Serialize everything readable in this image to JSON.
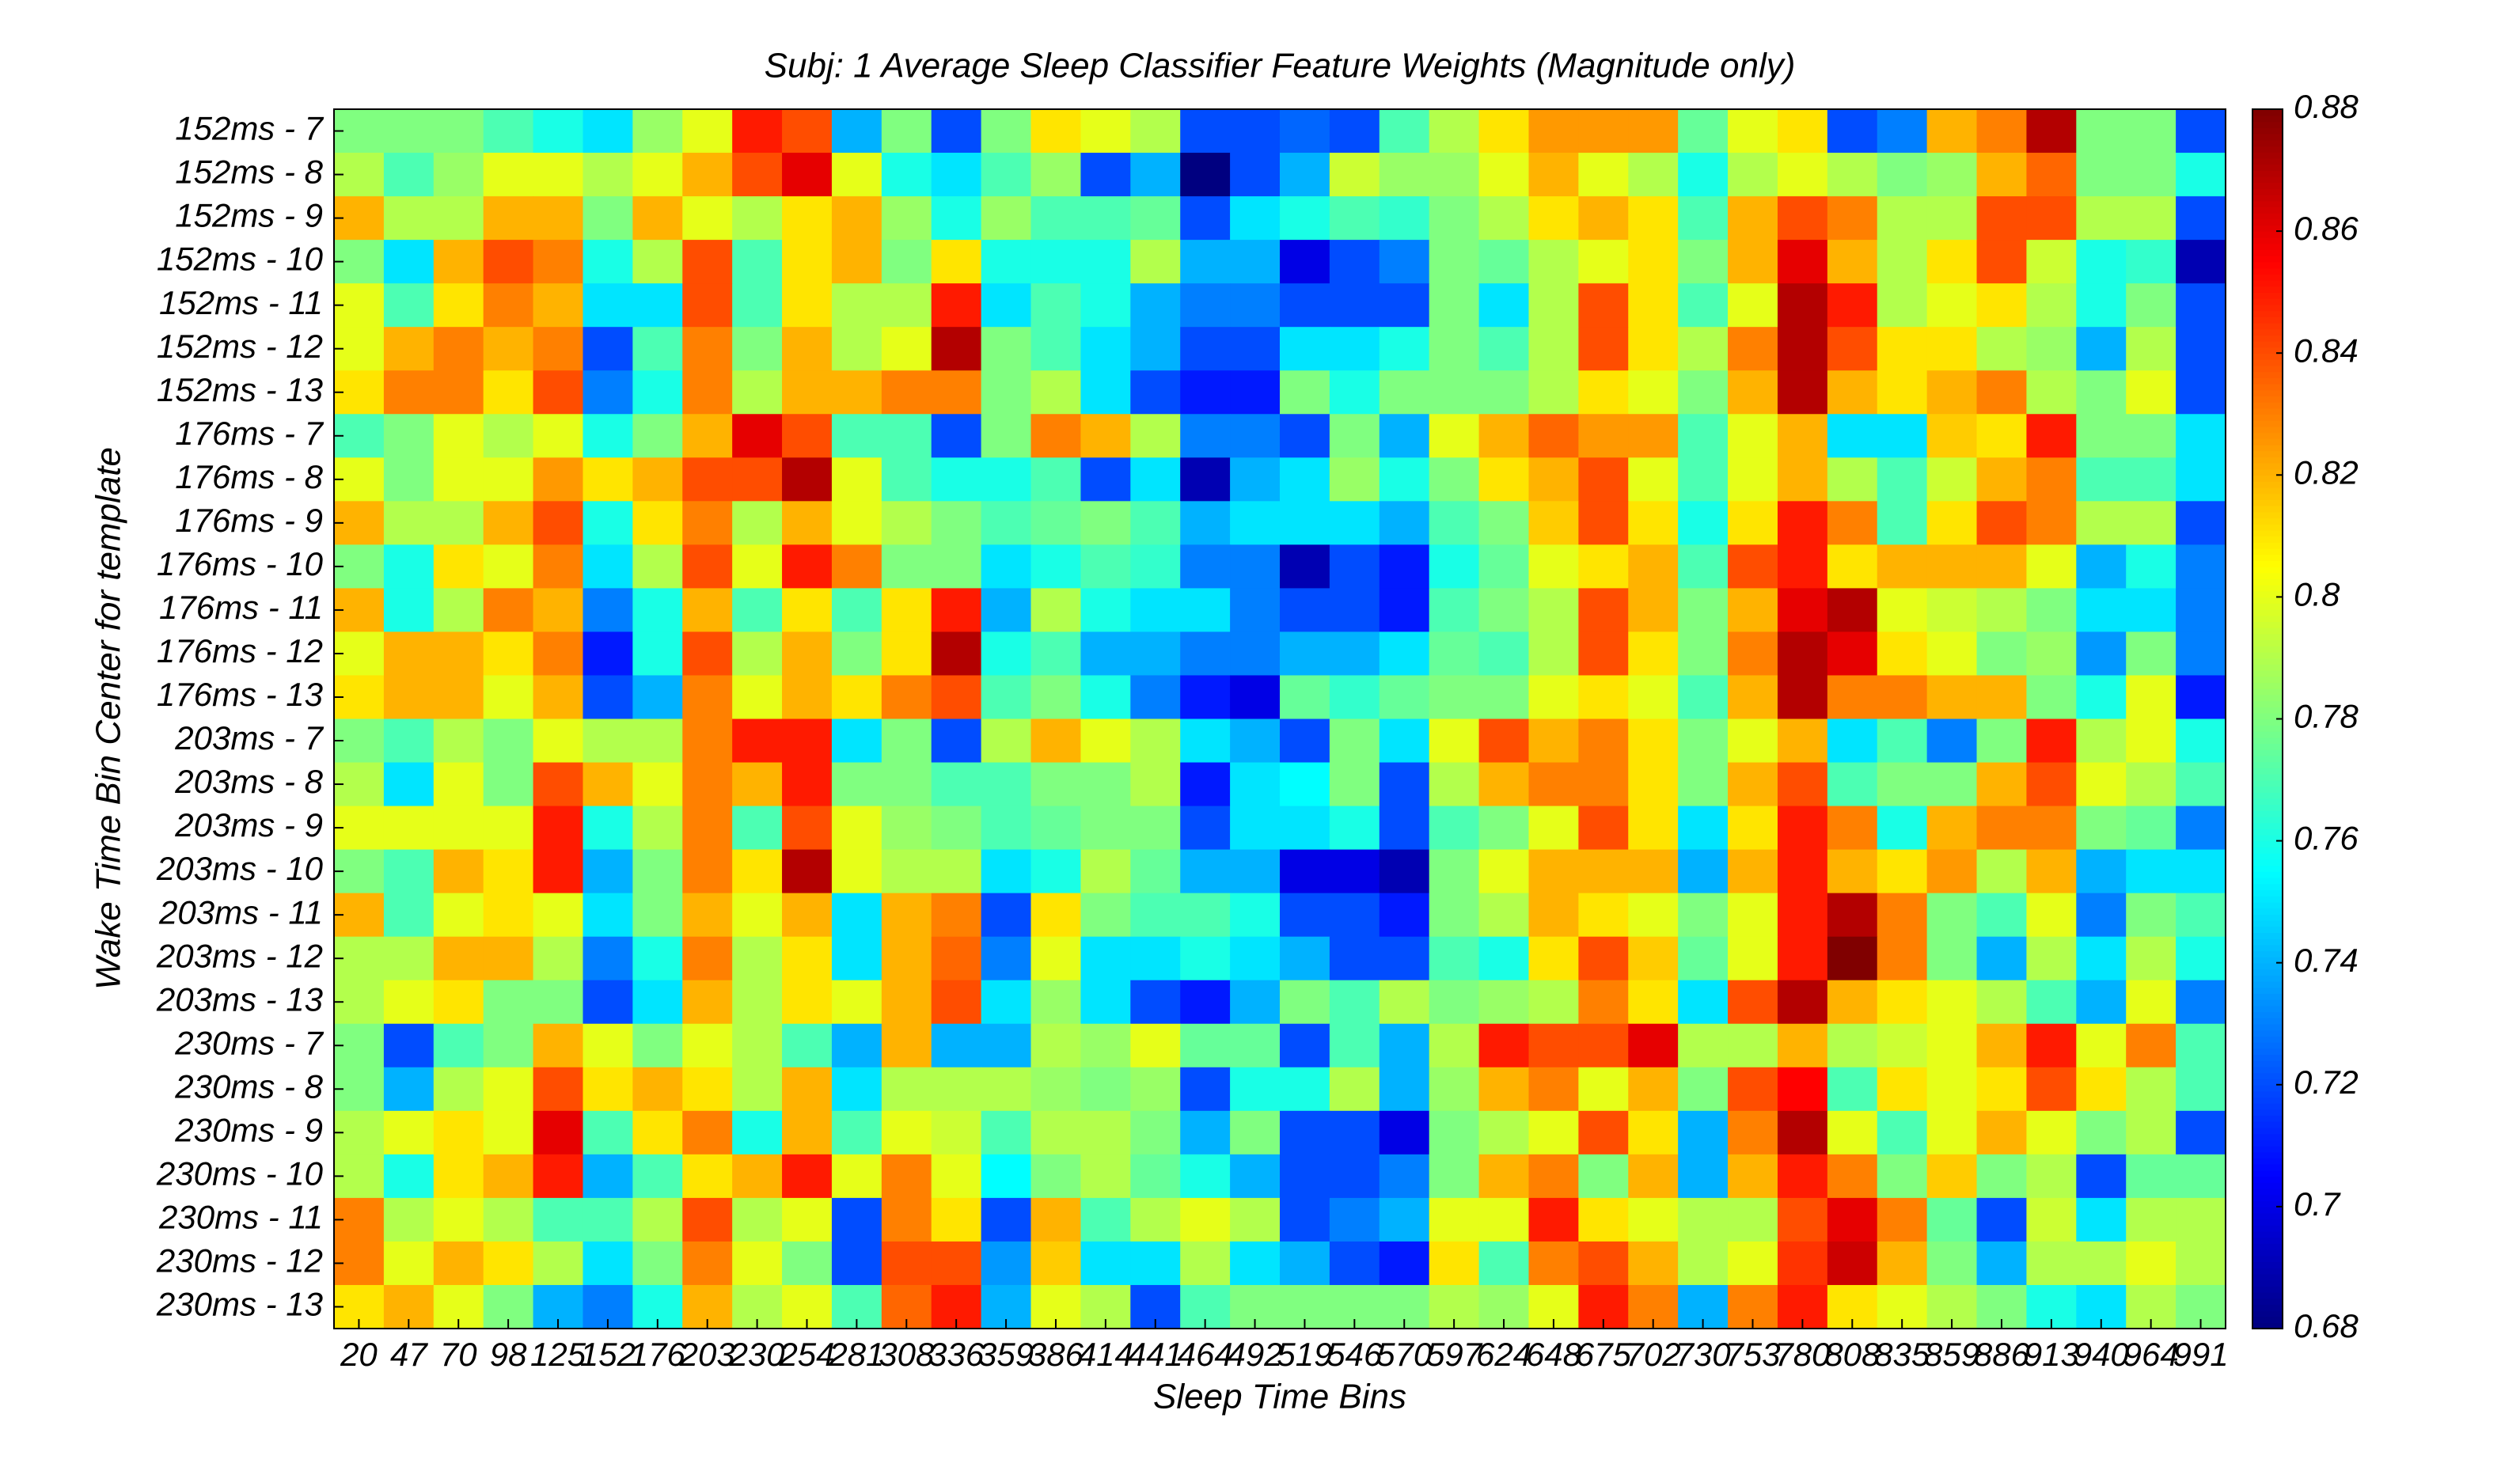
{
  "chart_data": {
    "type": "heatmap",
    "title": "Subj: 1 Average Sleep Classifier Feature Weights (Magnitude only)",
    "x_label": "Sleep Time Bins",
    "y_label": "Wake Time Bin Center for template",
    "colormap": "jet",
    "x": [
      "20",
      "47",
      "70",
      "98",
      "125",
      "152",
      "176",
      "203",
      "230",
      "254",
      "281",
      "308",
      "336",
      "359",
      "386",
      "414",
      "441",
      "464",
      "492",
      "519",
      "546",
      "570",
      "597",
      "624",
      "648",
      "675",
      "702",
      "730",
      "753",
      "780",
      "808",
      "835",
      "859",
      "886",
      "913",
      "940",
      "964",
      "991"
    ],
    "y": [
      "152ms - 7",
      "152ms - 8",
      "152ms - 9",
      "152ms - 10",
      "152ms - 11",
      "152ms - 12",
      "152ms - 13",
      "176ms - 7",
      "176ms - 8",
      "176ms - 9",
      "176ms - 10",
      "176ms - 11",
      "176ms - 12",
      "176ms - 13",
      "203ms - 7",
      "203ms - 8",
      "203ms - 9",
      "203ms - 10",
      "203ms - 11",
      "203ms - 12",
      "203ms - 13",
      "230ms - 7",
      "230ms - 8",
      "230ms - 9",
      "230ms - 10",
      "230ms - 11",
      "230ms - 12",
      "230ms - 13"
    ],
    "values": [
      [
        0.78,
        0.78,
        0.78,
        0.77,
        0.76,
        0.75,
        0.785,
        0.8,
        0.85,
        0.84,
        0.74,
        0.78,
        0.72,
        0.78,
        0.81,
        0.8,
        0.79,
        0.72,
        0.72,
        0.725,
        0.72,
        0.77,
        0.79,
        0.81,
        0.825,
        0.825,
        0.825,
        0.775,
        0.8,
        0.81,
        0.72,
        0.73,
        0.82,
        0.83,
        0.87,
        0.78,
        0.78,
        0.72
      ],
      [
        0.79,
        0.77,
        0.785,
        0.8,
        0.8,
        0.79,
        0.8,
        0.82,
        0.84,
        0.86,
        0.8,
        0.76,
        0.75,
        0.77,
        0.785,
        0.72,
        0.74,
        0.68,
        0.72,
        0.74,
        0.795,
        0.785,
        0.785,
        0.8,
        0.82,
        0.8,
        0.79,
        0.76,
        0.79,
        0.8,
        0.79,
        0.78,
        0.785,
        0.82,
        0.835,
        0.78,
        0.78,
        0.76
      ],
      [
        0.82,
        0.79,
        0.79,
        0.82,
        0.82,
        0.78,
        0.82,
        0.8,
        0.79,
        0.81,
        0.82,
        0.785,
        0.76,
        0.785,
        0.77,
        0.77,
        0.775,
        0.72,
        0.75,
        0.76,
        0.77,
        0.765,
        0.78,
        0.79,
        0.81,
        0.82,
        0.81,
        0.77,
        0.82,
        0.84,
        0.83,
        0.79,
        0.79,
        0.84,
        0.84,
        0.79,
        0.79,
        0.72
      ],
      [
        0.78,
        0.75,
        0.82,
        0.84,
        0.83,
        0.76,
        0.79,
        0.84,
        0.77,
        0.81,
        0.82,
        0.78,
        0.81,
        0.76,
        0.76,
        0.76,
        0.79,
        0.74,
        0.74,
        0.7,
        0.72,
        0.73,
        0.78,
        0.775,
        0.79,
        0.8,
        0.81,
        0.78,
        0.82,
        0.86,
        0.82,
        0.79,
        0.81,
        0.84,
        0.795,
        0.76,
        0.765,
        0.69
      ],
      [
        0.8,
        0.77,
        0.81,
        0.83,
        0.82,
        0.75,
        0.75,
        0.84,
        0.77,
        0.81,
        0.79,
        0.79,
        0.85,
        0.75,
        0.77,
        0.76,
        0.74,
        0.73,
        0.73,
        0.72,
        0.72,
        0.72,
        0.78,
        0.75,
        0.79,
        0.84,
        0.81,
        0.77,
        0.8,
        0.87,
        0.85,
        0.79,
        0.8,
        0.81,
        0.79,
        0.76,
        0.78,
        0.72
      ],
      [
        0.8,
        0.82,
        0.83,
        0.82,
        0.83,
        0.72,
        0.77,
        0.83,
        0.78,
        0.82,
        0.79,
        0.8,
        0.87,
        0.78,
        0.77,
        0.75,
        0.74,
        0.72,
        0.72,
        0.75,
        0.75,
        0.76,
        0.78,
        0.77,
        0.79,
        0.84,
        0.81,
        0.79,
        0.83,
        0.87,
        0.84,
        0.81,
        0.81,
        0.79,
        0.785,
        0.74,
        0.79,
        0.72
      ],
      [
        0.81,
        0.83,
        0.83,
        0.81,
        0.84,
        0.73,
        0.76,
        0.83,
        0.79,
        0.82,
        0.82,
        0.83,
        0.83,
        0.78,
        0.79,
        0.75,
        0.72,
        0.71,
        0.71,
        0.78,
        0.76,
        0.78,
        0.78,
        0.78,
        0.79,
        0.81,
        0.8,
        0.78,
        0.82,
        0.87,
        0.82,
        0.81,
        0.82,
        0.83,
        0.79,
        0.78,
        0.8,
        0.72
      ],
      [
        0.77,
        0.78,
        0.8,
        0.79,
        0.8,
        0.76,
        0.78,
        0.82,
        0.86,
        0.84,
        0.77,
        0.77,
        0.72,
        0.78,
        0.83,
        0.82,
        0.79,
        0.73,
        0.73,
        0.72,
        0.78,
        0.74,
        0.8,
        0.82,
        0.835,
        0.825,
        0.825,
        0.77,
        0.8,
        0.82,
        0.75,
        0.75,
        0.815,
        0.81,
        0.85,
        0.78,
        0.78,
        0.75
      ],
      [
        0.8,
        0.78,
        0.8,
        0.8,
        0.825,
        0.81,
        0.82,
        0.84,
        0.84,
        0.87,
        0.8,
        0.77,
        0.76,
        0.76,
        0.77,
        0.72,
        0.75,
        0.69,
        0.74,
        0.75,
        0.785,
        0.76,
        0.78,
        0.81,
        0.82,
        0.84,
        0.8,
        0.77,
        0.8,
        0.82,
        0.79,
        0.77,
        0.795,
        0.82,
        0.83,
        0.77,
        0.77,
        0.75
      ],
      [
        0.82,
        0.79,
        0.79,
        0.82,
        0.84,
        0.76,
        0.81,
        0.83,
        0.79,
        0.82,
        0.8,
        0.79,
        0.78,
        0.77,
        0.775,
        0.78,
        0.77,
        0.74,
        0.75,
        0.75,
        0.75,
        0.74,
        0.77,
        0.78,
        0.815,
        0.84,
        0.81,
        0.76,
        0.81,
        0.85,
        0.83,
        0.77,
        0.81,
        0.84,
        0.83,
        0.79,
        0.79,
        0.72
      ],
      [
        0.78,
        0.76,
        0.81,
        0.8,
        0.83,
        0.75,
        0.79,
        0.84,
        0.8,
        0.85,
        0.83,
        0.78,
        0.78,
        0.75,
        0.76,
        0.77,
        0.765,
        0.73,
        0.73,
        0.69,
        0.72,
        0.71,
        0.76,
        0.775,
        0.8,
        0.81,
        0.82,
        0.77,
        0.84,
        0.85,
        0.81,
        0.82,
        0.82,
        0.82,
        0.8,
        0.74,
        0.76,
        0.73
      ],
      [
        0.82,
        0.76,
        0.79,
        0.83,
        0.82,
        0.73,
        0.76,
        0.82,
        0.77,
        0.81,
        0.77,
        0.81,
        0.85,
        0.74,
        0.79,
        0.76,
        0.75,
        0.75,
        0.73,
        0.72,
        0.72,
        0.71,
        0.77,
        0.78,
        0.79,
        0.84,
        0.82,
        0.78,
        0.82,
        0.86,
        0.87,
        0.8,
        0.795,
        0.79,
        0.78,
        0.75,
        0.75,
        0.73
      ],
      [
        0.8,
        0.82,
        0.82,
        0.81,
        0.83,
        0.71,
        0.76,
        0.84,
        0.79,
        0.82,
        0.78,
        0.81,
        0.87,
        0.76,
        0.77,
        0.74,
        0.74,
        0.73,
        0.73,
        0.74,
        0.74,
        0.75,
        0.775,
        0.77,
        0.79,
        0.84,
        0.81,
        0.78,
        0.83,
        0.87,
        0.86,
        0.81,
        0.8,
        0.78,
        0.785,
        0.735,
        0.78,
        0.73
      ],
      [
        0.81,
        0.82,
        0.82,
        0.8,
        0.82,
        0.72,
        0.74,
        0.83,
        0.8,
        0.82,
        0.81,
        0.83,
        0.84,
        0.77,
        0.78,
        0.76,
        0.73,
        0.71,
        0.7,
        0.775,
        0.765,
        0.775,
        0.78,
        0.78,
        0.8,
        0.81,
        0.8,
        0.77,
        0.82,
        0.87,
        0.83,
        0.83,
        0.82,
        0.82,
        0.78,
        0.76,
        0.8,
        0.71
      ],
      [
        0.78,
        0.77,
        0.79,
        0.78,
        0.8,
        0.79,
        0.79,
        0.83,
        0.85,
        0.85,
        0.75,
        0.78,
        0.72,
        0.79,
        0.82,
        0.8,
        0.79,
        0.75,
        0.74,
        0.72,
        0.78,
        0.75,
        0.8,
        0.84,
        0.82,
        0.83,
        0.81,
        0.78,
        0.8,
        0.82,
        0.75,
        0.77,
        0.73,
        0.78,
        0.85,
        0.79,
        0.8,
        0.76
      ],
      [
        0.79,
        0.75,
        0.8,
        0.78,
        0.84,
        0.82,
        0.8,
        0.83,
        0.82,
        0.85,
        0.78,
        0.78,
        0.77,
        0.77,
        0.78,
        0.78,
        0.79,
        0.71,
        0.75,
        0.755,
        0.78,
        0.72,
        0.79,
        0.82,
        0.83,
        0.83,
        0.81,
        0.78,
        0.82,
        0.84,
        0.77,
        0.78,
        0.78,
        0.82,
        0.84,
        0.8,
        0.79,
        0.77
      ],
      [
        0.8,
        0.8,
        0.8,
        0.8,
        0.85,
        0.76,
        0.79,
        0.83,
        0.77,
        0.84,
        0.8,
        0.785,
        0.78,
        0.77,
        0.775,
        0.78,
        0.78,
        0.72,
        0.75,
        0.75,
        0.76,
        0.72,
        0.77,
        0.78,
        0.8,
        0.84,
        0.81,
        0.75,
        0.81,
        0.85,
        0.83,
        0.76,
        0.82,
        0.83,
        0.83,
        0.78,
        0.775,
        0.73
      ],
      [
        0.78,
        0.77,
        0.82,
        0.81,
        0.85,
        0.74,
        0.78,
        0.83,
        0.81,
        0.87,
        0.8,
        0.79,
        0.79,
        0.75,
        0.76,
        0.79,
        0.775,
        0.74,
        0.74,
        0.7,
        0.7,
        0.69,
        0.78,
        0.8,
        0.82,
        0.82,
        0.82,
        0.74,
        0.82,
        0.85,
        0.82,
        0.81,
        0.825,
        0.79,
        0.82,
        0.74,
        0.75,
        0.75
      ],
      [
        0.82,
        0.77,
        0.8,
        0.81,
        0.8,
        0.75,
        0.78,
        0.82,
        0.8,
        0.82,
        0.75,
        0.82,
        0.83,
        0.72,
        0.81,
        0.78,
        0.77,
        0.77,
        0.76,
        0.72,
        0.72,
        0.71,
        0.78,
        0.79,
        0.82,
        0.81,
        0.8,
        0.78,
        0.8,
        0.85,
        0.87,
        0.83,
        0.78,
        0.77,
        0.8,
        0.73,
        0.78,
        0.77
      ],
      [
        0.79,
        0.79,
        0.82,
        0.82,
        0.79,
        0.73,
        0.76,
        0.83,
        0.79,
        0.81,
        0.75,
        0.82,
        0.835,
        0.73,
        0.8,
        0.75,
        0.75,
        0.76,
        0.75,
        0.74,
        0.72,
        0.72,
        0.77,
        0.76,
        0.81,
        0.84,
        0.815,
        0.775,
        0.8,
        0.85,
        0.88,
        0.83,
        0.78,
        0.74,
        0.79,
        0.75,
        0.79,
        0.76
      ],
      [
        0.79,
        0.8,
        0.81,
        0.78,
        0.78,
        0.72,
        0.75,
        0.82,
        0.79,
        0.81,
        0.8,
        0.82,
        0.84,
        0.75,
        0.785,
        0.75,
        0.72,
        0.71,
        0.74,
        0.78,
        0.77,
        0.79,
        0.78,
        0.785,
        0.79,
        0.83,
        0.81,
        0.75,
        0.84,
        0.87,
        0.82,
        0.81,
        0.8,
        0.79,
        0.77,
        0.74,
        0.8,
        0.73
      ],
      [
        0.78,
        0.72,
        0.77,
        0.78,
        0.82,
        0.8,
        0.78,
        0.8,
        0.79,
        0.77,
        0.74,
        0.82,
        0.74,
        0.74,
        0.79,
        0.785,
        0.8,
        0.775,
        0.775,
        0.72,
        0.77,
        0.74,
        0.79,
        0.85,
        0.84,
        0.84,
        0.86,
        0.79,
        0.79,
        0.82,
        0.79,
        0.795,
        0.8,
        0.82,
        0.85,
        0.8,
        0.83,
        0.77
      ],
      [
        0.78,
        0.74,
        0.79,
        0.8,
        0.84,
        0.81,
        0.82,
        0.81,
        0.79,
        0.82,
        0.75,
        0.79,
        0.79,
        0.79,
        0.785,
        0.78,
        0.785,
        0.72,
        0.76,
        0.76,
        0.79,
        0.74,
        0.785,
        0.82,
        0.83,
        0.8,
        0.82,
        0.78,
        0.84,
        0.855,
        0.77,
        0.81,
        0.8,
        0.81,
        0.84,
        0.81,
        0.79,
        0.77
      ],
      [
        0.79,
        0.8,
        0.81,
        0.8,
        0.86,
        0.77,
        0.81,
        0.83,
        0.76,
        0.82,
        0.77,
        0.8,
        0.795,
        0.77,
        0.79,
        0.79,
        0.78,
        0.74,
        0.78,
        0.72,
        0.72,
        0.7,
        0.78,
        0.79,
        0.8,
        0.84,
        0.81,
        0.74,
        0.83,
        0.87,
        0.8,
        0.77,
        0.8,
        0.82,
        0.8,
        0.78,
        0.79,
        0.72
      ],
      [
        0.79,
        0.76,
        0.81,
        0.82,
        0.85,
        0.74,
        0.77,
        0.81,
        0.82,
        0.85,
        0.8,
        0.83,
        0.8,
        0.755,
        0.78,
        0.79,
        0.775,
        0.76,
        0.74,
        0.72,
        0.72,
        0.73,
        0.78,
        0.82,
        0.83,
        0.78,
        0.82,
        0.74,
        0.82,
        0.85,
        0.83,
        0.78,
        0.815,
        0.78,
        0.79,
        0.72,
        0.775,
        0.775
      ],
      [
        0.83,
        0.79,
        0.8,
        0.79,
        0.77,
        0.77,
        0.79,
        0.84,
        0.79,
        0.8,
        0.72,
        0.83,
        0.81,
        0.72,
        0.82,
        0.77,
        0.79,
        0.8,
        0.79,
        0.72,
        0.73,
        0.74,
        0.8,
        0.8,
        0.85,
        0.81,
        0.8,
        0.79,
        0.79,
        0.84,
        0.86,
        0.83,
        0.775,
        0.72,
        0.795,
        0.75,
        0.79,
        0.79
      ],
      [
        0.83,
        0.8,
        0.82,
        0.81,
        0.79,
        0.75,
        0.78,
        0.83,
        0.8,
        0.78,
        0.72,
        0.84,
        0.84,
        0.735,
        0.815,
        0.75,
        0.75,
        0.79,
        0.75,
        0.74,
        0.72,
        0.71,
        0.81,
        0.77,
        0.83,
        0.84,
        0.82,
        0.79,
        0.8,
        0.845,
        0.865,
        0.82,
        0.78,
        0.74,
        0.79,
        0.79,
        0.8,
        0.79
      ],
      [
        0.81,
        0.82,
        0.8,
        0.78,
        0.74,
        0.73,
        0.76,
        0.82,
        0.79,
        0.8,
        0.77,
        0.835,
        0.85,
        0.74,
        0.8,
        0.79,
        0.72,
        0.77,
        0.78,
        0.78,
        0.78,
        0.78,
        0.79,
        0.785,
        0.8,
        0.85,
        0.83,
        0.74,
        0.83,
        0.85,
        0.81,
        0.8,
        0.79,
        0.78,
        0.76,
        0.75,
        0.79,
        0.78
      ]
    ],
    "clim": [
      0.68,
      0.88
    ],
    "cticks": [
      0.68,
      0.7,
      0.72,
      0.74,
      0.76,
      0.78,
      0.8,
      0.82,
      0.84,
      0.86,
      0.88
    ]
  }
}
